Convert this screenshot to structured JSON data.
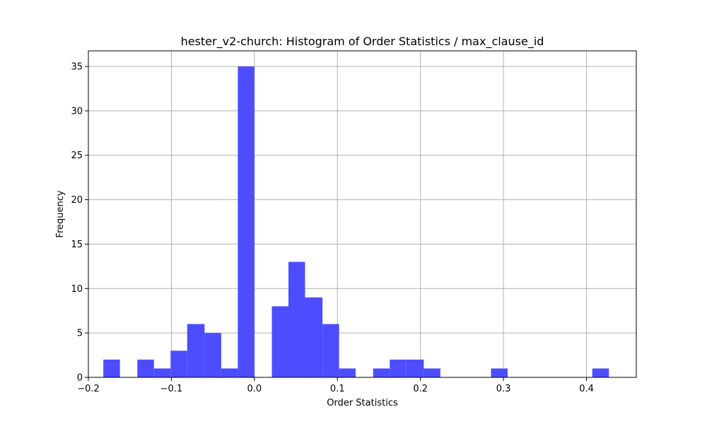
{
  "chart_data": {
    "type": "bar",
    "title": "hester_v2-church: Histogram of Order Statistics / max_clause_id",
    "xlabel": "Order Statistics",
    "ylabel": "Frequency",
    "xlim": [
      -0.2,
      0.46
    ],
    "ylim": [
      0,
      36.75
    ],
    "xticks": [
      -0.2,
      -0.1,
      0.0,
      0.1,
      0.2,
      0.3,
      0.4
    ],
    "xtick_labels": [
      "−0.2",
      "−0.1",
      "0.0",
      "0.1",
      "0.2",
      "0.3",
      "0.4"
    ],
    "yticks": [
      0,
      5,
      10,
      15,
      20,
      25,
      30,
      35
    ],
    "ytick_labels": [
      "0",
      "5",
      "10",
      "15",
      "20",
      "25",
      "30",
      "35"
    ],
    "grid": true,
    "bar_color": "#4d4dff",
    "bins": [
      {
        "x0": -0.182,
        "x1": -0.162,
        "count": 2
      },
      {
        "x0": -0.162,
        "x1": -0.141,
        "count": 0
      },
      {
        "x0": -0.141,
        "x1": -0.121,
        "count": 2
      },
      {
        "x0": -0.121,
        "x1": -0.101,
        "count": 1
      },
      {
        "x0": -0.101,
        "x1": -0.081,
        "count": 3
      },
      {
        "x0": -0.081,
        "x1": -0.06,
        "count": 6
      },
      {
        "x0": -0.06,
        "x1": -0.04,
        "count": 5
      },
      {
        "x0": -0.04,
        "x1": -0.02,
        "count": 1
      },
      {
        "x0": -0.02,
        "x1": 0.0,
        "count": 35
      },
      {
        "x0": 0.0,
        "x1": 0.021,
        "count": 0
      },
      {
        "x0": 0.021,
        "x1": 0.041,
        "count": 8
      },
      {
        "x0": 0.041,
        "x1": 0.061,
        "count": 13
      },
      {
        "x0": 0.061,
        "x1": 0.082,
        "count": 9
      },
      {
        "x0": 0.082,
        "x1": 0.102,
        "count": 6
      },
      {
        "x0": 0.102,
        "x1": 0.122,
        "count": 1
      },
      {
        "x0": 0.122,
        "x1": 0.143,
        "count": 0
      },
      {
        "x0": 0.143,
        "x1": 0.163,
        "count": 1
      },
      {
        "x0": 0.163,
        "x1": 0.183,
        "count": 2
      },
      {
        "x0": 0.183,
        "x1": 0.204,
        "count": 2
      },
      {
        "x0": 0.204,
        "x1": 0.224,
        "count": 1
      },
      {
        "x0": 0.224,
        "x1": 0.244,
        "count": 0
      },
      {
        "x0": 0.244,
        "x1": 0.265,
        "count": 0
      },
      {
        "x0": 0.265,
        "x1": 0.285,
        "count": 0
      },
      {
        "x0": 0.285,
        "x1": 0.305,
        "count": 1
      },
      {
        "x0": 0.305,
        "x1": 0.326,
        "count": 0
      },
      {
        "x0": 0.326,
        "x1": 0.346,
        "count": 0
      },
      {
        "x0": 0.346,
        "x1": 0.366,
        "count": 0
      },
      {
        "x0": 0.366,
        "x1": 0.387,
        "count": 0
      },
      {
        "x0": 0.387,
        "x1": 0.407,
        "count": 0
      },
      {
        "x0": 0.407,
        "x1": 0.427,
        "count": 1
      }
    ]
  }
}
